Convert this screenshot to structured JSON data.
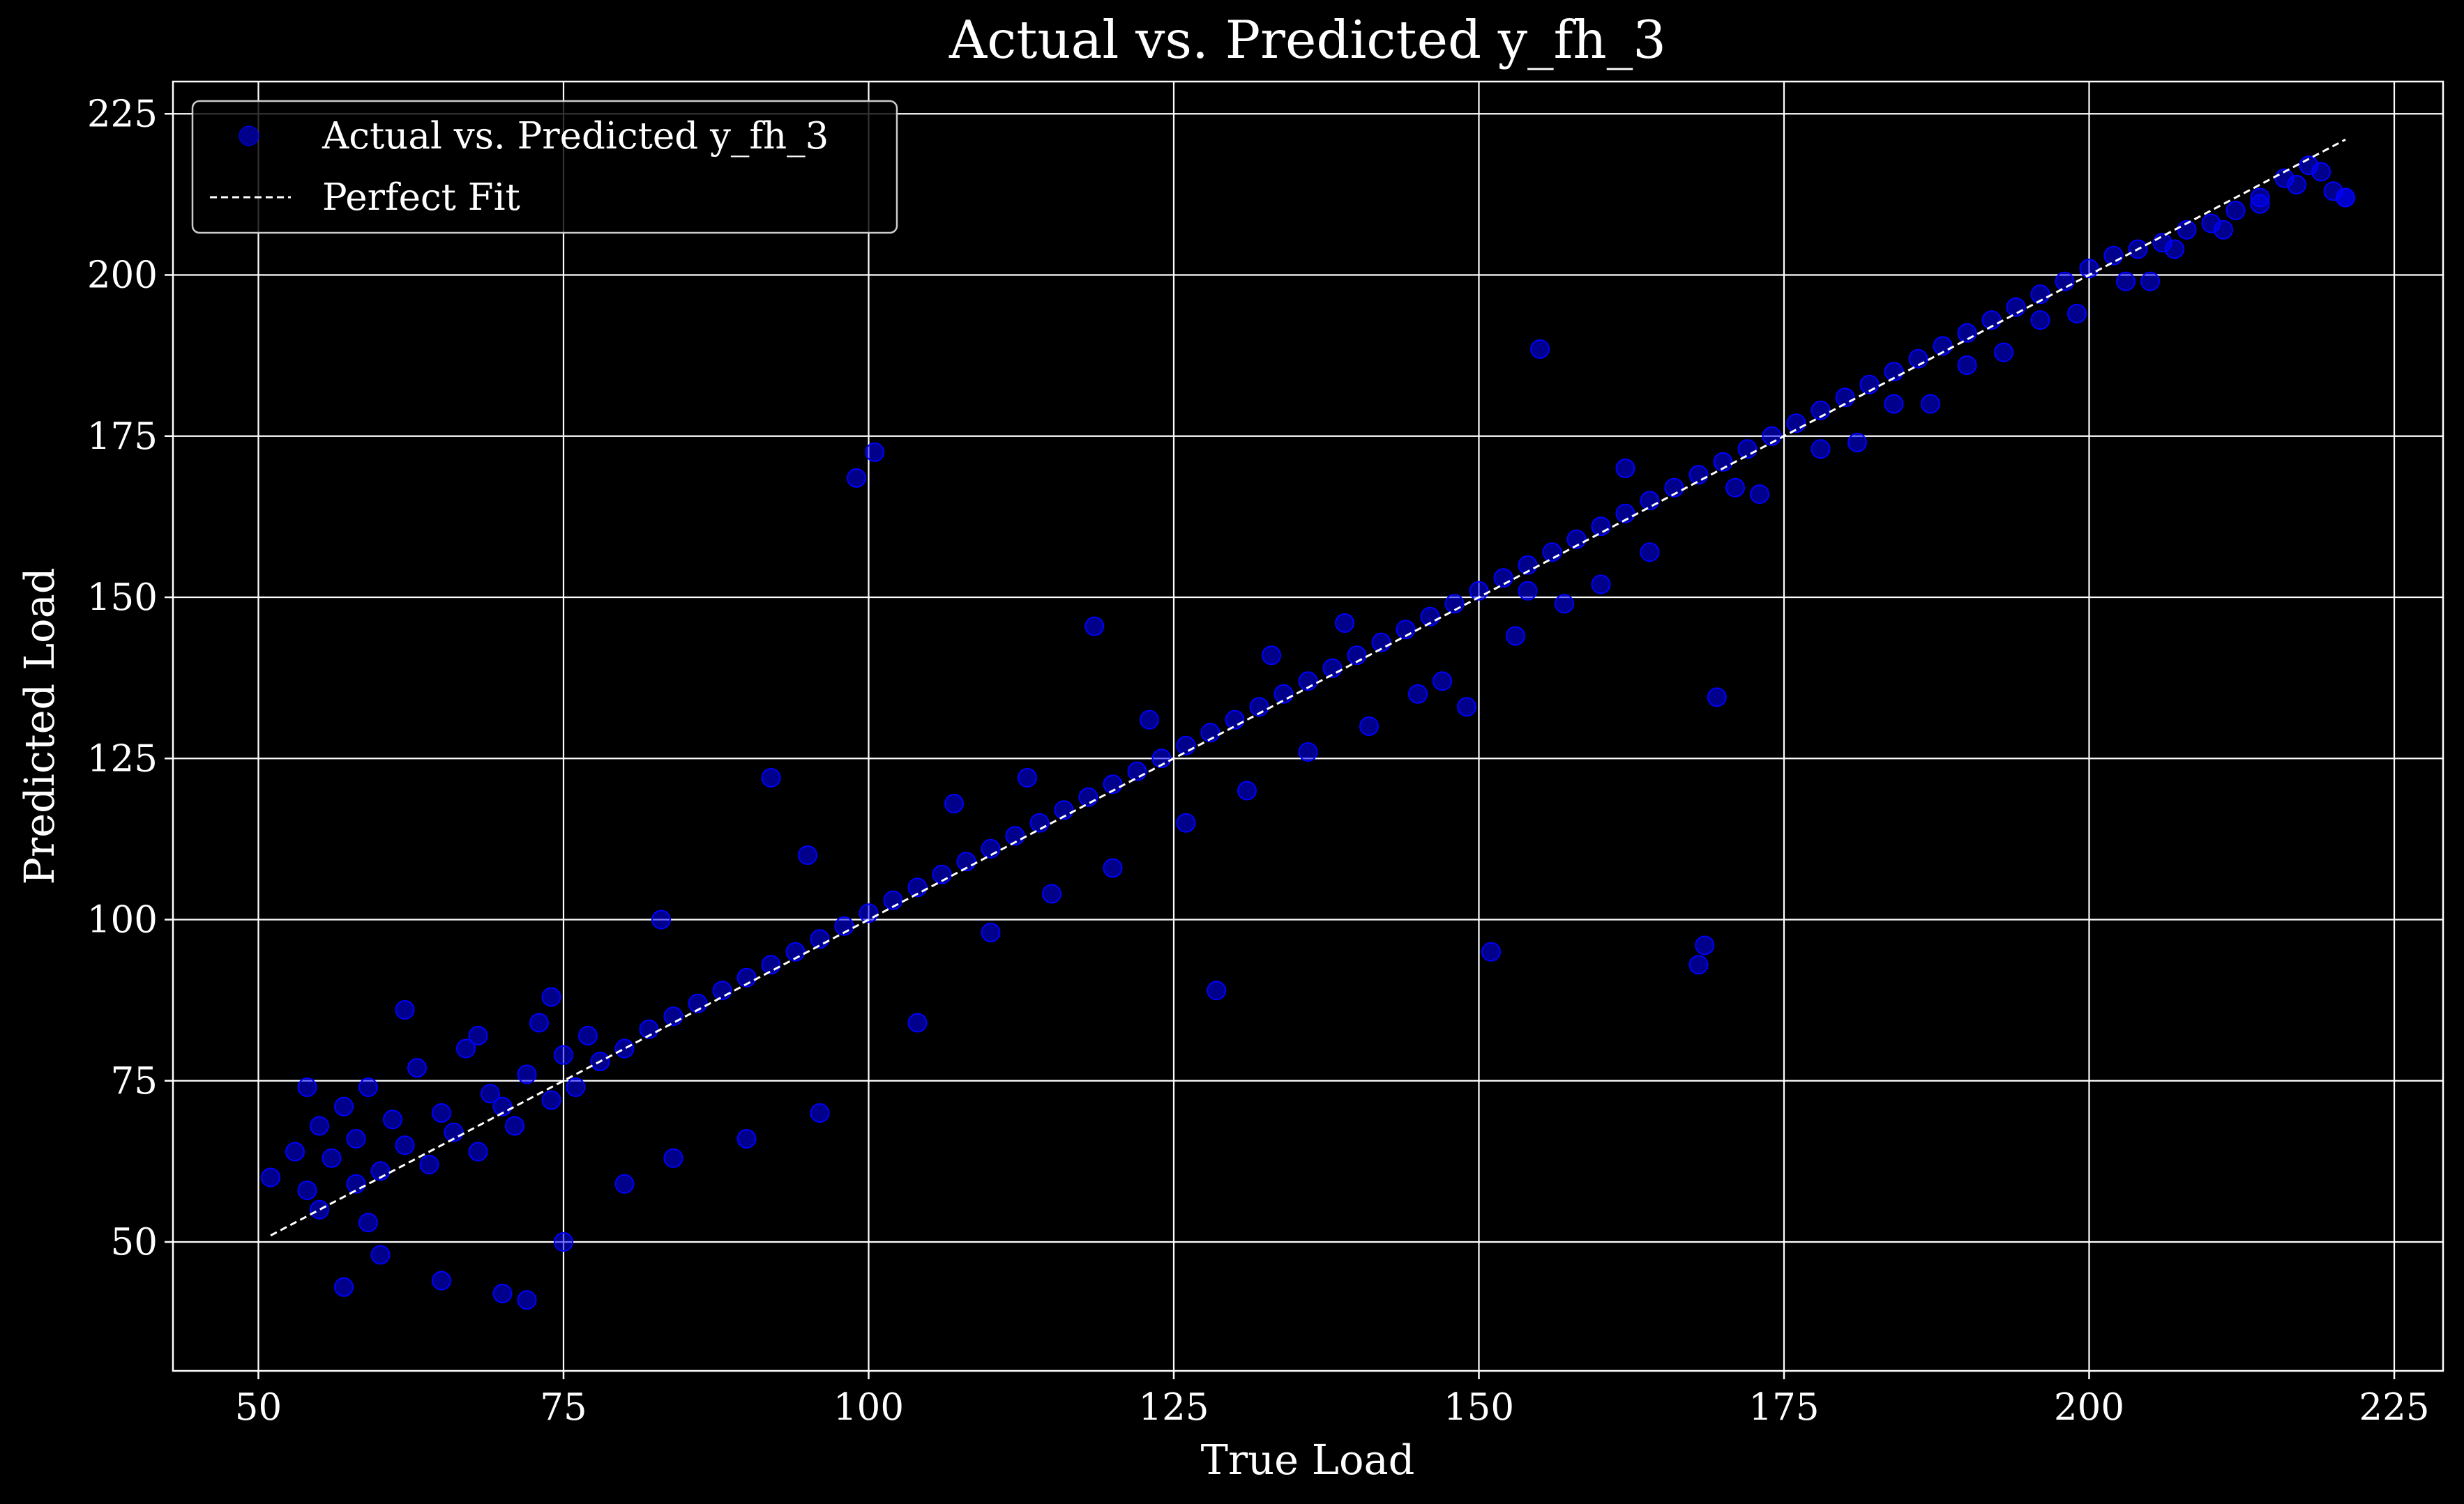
{
  "colors": {
    "background": "#000000",
    "foreground": "#ffffff",
    "grid": "#ffffff",
    "points": "#0000ff",
    "perfect_fit": "#ffffff"
  },
  "chart_data": {
    "type": "scatter",
    "title": "Actual vs. Predicted y_fh_3",
    "xlabel": "True Load",
    "ylabel": "Predicted Load",
    "xlim": [
      43,
      229
    ],
    "ylim": [
      30,
      230
    ],
    "xticks": [
      50,
      75,
      100,
      125,
      150,
      175,
      200,
      225
    ],
    "yticks": [
      50,
      75,
      100,
      125,
      150,
      175,
      200,
      225
    ],
    "grid": true,
    "legend_position": "top-left",
    "series": [
      {
        "name": "Actual vs. Predicted y_fh_3",
        "kind": "scatter",
        "color": "#0000ff",
        "x": [
          51.0,
          53.0,
          54.0,
          55.0,
          55.0,
          56.0,
          57.0,
          58.0,
          58.0,
          59.0,
          60.0,
          61.0,
          62.0,
          63.0,
          64.0,
          65.0,
          66.0,
          67.0,
          68.0,
          69.0,
          70.0,
          71.0,
          72.0,
          73.0,
          74.0,
          75.0,
          76.0,
          77.0,
          78.0,
          80.0,
          82.0,
          84.0,
          86.0,
          88.0,
          90.0,
          92.0,
          94.0,
          96.0,
          98.0,
          100.0,
          102.0,
          104.0,
          106.0,
          108.0,
          110.0,
          112.0,
          114.0,
          116.0,
          118.0,
          120.0,
          122.0,
          124.0,
          126.0,
          128.0,
          130.0,
          132.0,
          134.0,
          136.0,
          138.0,
          140.0,
          142.0,
          144.0,
          146.0,
          148.0,
          150.0,
          152.0,
          154.0,
          156.0,
          158.0,
          160.0,
          162.0,
          164.0,
          166.0,
          168.0,
          170.0,
          172.0,
          174.0,
          176.0,
          178.0,
          180.0,
          182.0,
          184.0,
          186.0,
          188.0,
          190.0,
          192.0,
          194.0,
          196.0,
          198.0,
          200.0,
          202.0,
          204.0,
          206.0,
          208.0,
          210.0,
          212.0,
          214.0,
          216.0,
          218.0,
          220.0,
          221.0,
          99.0,
          100.5,
          168.0,
          168.5,
          169.5,
          155.0,
          151.0,
          128.5,
          92.0,
          118.5,
          65.0,
          70.0,
          57.0,
          60.0,
          72.0,
          75.0,
          59.0,
          80.0,
          84.0,
          90.0,
          96.0,
          104.0,
          110.0,
          115.0,
          120.0,
          126.0,
          131.0,
          136.0,
          141.0,
          147.0,
          153.0,
          157.0,
          160.0,
          164.0,
          171.0,
          178.0,
          184.0,
          190.0,
          196.0,
          203.0,
          207.0,
          211.0,
          214.0,
          217.0,
          219.0,
          221.0,
          54.0,
          62.0,
          68.0,
          74.0,
          83.0,
          95.0,
          107.0,
          113.0,
          123.0,
          133.0,
          139.0,
          145.0,
          149.0,
          154.0,
          162.0,
          173.0,
          181.0,
          187.0,
          193.0,
          199.0,
          205.0
        ],
        "y": [
          60.0,
          64.0,
          58.0,
          68.0,
          55.0,
          63.0,
          71.0,
          59.0,
          66.0,
          74.0,
          61.0,
          69.0,
          65.0,
          77.0,
          62.0,
          70.0,
          67.0,
          80.0,
          64.0,
          73.0,
          71.0,
          68.0,
          76.0,
          84.0,
          72.0,
          79.0,
          74.0,
          82.0,
          78.0,
          80.0,
          83.0,
          85.0,
          87.0,
          89.0,
          91.0,
          93.0,
          95.0,
          97.0,
          99.0,
          101.0,
          103.0,
          105.0,
          107.0,
          109.0,
          111.0,
          113.0,
          115.0,
          117.0,
          119.0,
          121.0,
          123.0,
          125.0,
          127.0,
          129.0,
          131.0,
          133.0,
          135.0,
          137.0,
          139.0,
          141.0,
          143.0,
          145.0,
          147.0,
          149.0,
          151.0,
          153.0,
          155.0,
          157.0,
          159.0,
          161.0,
          163.0,
          165.0,
          167.0,
          169.0,
          171.0,
          173.0,
          175.0,
          177.0,
          179.0,
          181.0,
          183.0,
          185.0,
          187.0,
          189.0,
          191.0,
          193.0,
          195.0,
          197.0,
          199.0,
          201.0,
          203.0,
          204.0,
          205.0,
          207.0,
          208.0,
          210.0,
          212.0,
          215.0,
          217.0,
          213.0,
          212.0,
          168.5,
          172.5,
          93.0,
          96.0,
          134.5,
          188.5,
          95.0,
          89.0,
          122.0,
          145.5,
          44.0,
          42.0,
          43.0,
          48.0,
          41.0,
          50.0,
          53.0,
          59.0,
          63.0,
          66.0,
          70.0,
          84.0,
          98.0,
          104.0,
          108.0,
          115.0,
          120.0,
          126.0,
          130.0,
          137.0,
          144.0,
          149.0,
          152.0,
          157.0,
          167.0,
          173.0,
          180.0,
          186.0,
          193.0,
          199.0,
          204.0,
          207.0,
          211.0,
          214.0,
          216.0,
          212.0,
          74.0,
          86.0,
          82.0,
          88.0,
          100.0,
          110.0,
          118.0,
          122.0,
          131.0,
          141.0,
          146.0,
          135.0,
          133.0,
          151.0,
          170.0,
          166.0,
          174.0,
          180.0,
          188.0,
          194.0,
          199.0
        ]
      },
      {
        "name": "Perfect Fit",
        "kind": "line",
        "style": "dashed",
        "color": "#ffffff",
        "x": [
          51,
          221
        ],
        "y": [
          51,
          221
        ]
      }
    ]
  }
}
